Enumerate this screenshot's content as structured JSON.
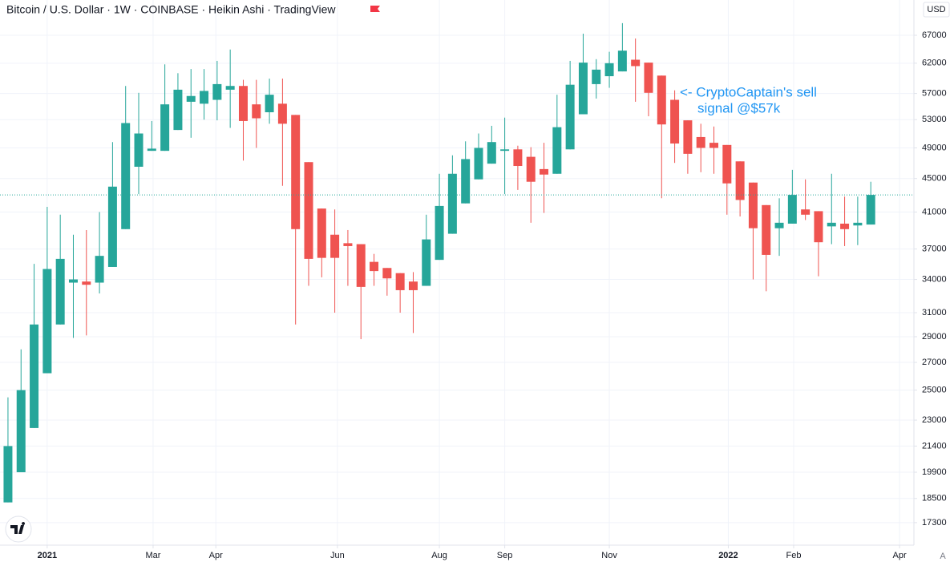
{
  "chart_data": {
    "type": "candlestick",
    "title": "Bitcoin / U.S. Dollar · 1W · COINBASE · Heikin Ashi · TradingView",
    "currency": "USD",
    "scale_button": "A",
    "annotations": [
      "<- CryptoCaptain's sell",
      "signal @$57k"
    ],
    "annotation_color": "#2196f3",
    "up_color": "#26a69a",
    "down_color": "#ef5350",
    "log_scale": true,
    "grid": true,
    "x": [
      0,
      1,
      2,
      3,
      4,
      5,
      6,
      7,
      8,
      9,
      10,
      11,
      12,
      13,
      14,
      15,
      16,
      17,
      18,
      19,
      20,
      21,
      22,
      23,
      24,
      25,
      26,
      27,
      28,
      29,
      30,
      31,
      32,
      33,
      34,
      35,
      36,
      37,
      38,
      39,
      40,
      41,
      42,
      43,
      44,
      45,
      46,
      47,
      48,
      49,
      50,
      51,
      52,
      53,
      54,
      55,
      56,
      57,
      58,
      59,
      60,
      61,
      62,
      63,
      64,
      65,
      66
    ],
    "open": [
      18300,
      19900,
      22500,
      26200,
      30000,
      33700,
      33800,
      33700,
      35200,
      39100,
      46500,
      48600,
      48600,
      51500,
      55700,
      55400,
      56000,
      57600,
      58200,
      55300,
      54100,
      55400,
      53700,
      47100,
      41400,
      38500,
      37600,
      37500,
      35700,
      35100,
      34600,
      33800,
      33400,
      35900,
      38600,
      42000,
      44900,
      46900,
      48600,
      48800,
      47800,
      46200,
      45600,
      48800,
      53800,
      58500,
      59800,
      60600,
      62600,
      62100,
      59900,
      56000,
      52900,
      50500,
      49700,
      49400,
      47200,
      44500,
      41800,
      39200,
      39700,
      41300,
      41100,
      39400,
      39700,
      39500,
      39600
    ],
    "high": [
      24500,
      28000,
      35500,
      41600,
      40700,
      38500,
      39000,
      41000,
      49800,
      58200,
      57100,
      52800,
      61800,
      60300,
      61000,
      61000,
      62400,
      64400,
      59200,
      59200,
      59400,
      59400,
      53700,
      47100,
      41400,
      41300,
      39000,
      37500,
      36500,
      35100,
      34600,
      34700,
      40700,
      45600,
      48000,
      49900,
      51000,
      52100,
      53300,
      49300,
      49100,
      49700,
      56800,
      62400,
      67300,
      62700,
      64000,
      69300,
      66400,
      62100,
      59900,
      57500,
      52900,
      52400,
      52000,
      49400,
      47200,
      44500,
      41800,
      42600,
      46100,
      44900,
      41100,
      45600,
      42800,
      42800,
      44600
    ],
    "low": [
      18300,
      19900,
      22500,
      26200,
      30000,
      28900,
      29100,
      32700,
      35200,
      39100,
      43100,
      48600,
      48600,
      51500,
      50400,
      53000,
      52900,
      51800,
      47300,
      49000,
      52400,
      44100,
      30000,
      33400,
      34200,
      31000,
      33400,
      28800,
      33400,
      32500,
      31000,
      29300,
      33400,
      35900,
      38600,
      42000,
      44900,
      46900,
      43100,
      43600,
      39800,
      40900,
      45600,
      48800,
      53800,
      56200,
      57900,
      60600,
      55700,
      53500,
      42600,
      47000,
      45600,
      45800,
      45600,
      40700,
      40500,
      34000,
      32900,
      36300,
      39700,
      40100,
      34300,
      37500,
      37300,
      37400,
      39600
    ],
    "close": [
      21400,
      25000,
      30000,
      35000,
      36000,
      34000,
      33500,
      36300,
      44000,
      52500,
      51000,
      48900,
      55300,
      57600,
      56600,
      57400,
      58500,
      58200,
      52800,
      53200,
      56800,
      52400,
      39100,
      36000,
      36100,
      36100,
      37300,
      33300,
      34800,
      34100,
      33000,
      33000,
      38000,
      41700,
      45600,
      47500,
      49000,
      49800,
      48800,
      46600,
      44600,
      45500,
      51900,
      58400,
      62100,
      60900,
      62000,
      64200,
      61500,
      57100,
      52300,
      49600,
      48200,
      49000,
      49000,
      44400,
      42400,
      39200,
      36400,
      39800,
      43000,
      40700,
      37700,
      39800,
      39100,
      39800,
      43000
    ],
    "xlim": [
      -0.61,
      69.3
    ],
    "xticks": [
      {
        "value": 3,
        "label": "2021"
      },
      {
        "value": 11.1,
        "label": "Mar"
      },
      {
        "value": 15.9,
        "label": "Apr"
      },
      {
        "value": 25.2,
        "label": "Jun"
      },
      {
        "value": 33.0,
        "label": "Aug"
      },
      {
        "value": 38.0,
        "label": "Sep"
      },
      {
        "value": 46.0,
        "label": "Nov"
      },
      {
        "value": 55.1,
        "label": "2022"
      },
      {
        "value": 60.1,
        "label": "Feb"
      },
      {
        "value": 68.2,
        "label": "Apr"
      }
    ],
    "ylim": [
      16250,
      73900
    ],
    "yticks": [
      17300,
      18500,
      19900,
      21400,
      23000,
      25000,
      27000,
      29000,
      31000,
      34000,
      37000,
      41000,
      45000,
      49000,
      53000,
      57000,
      62000,
      67000
    ]
  }
}
